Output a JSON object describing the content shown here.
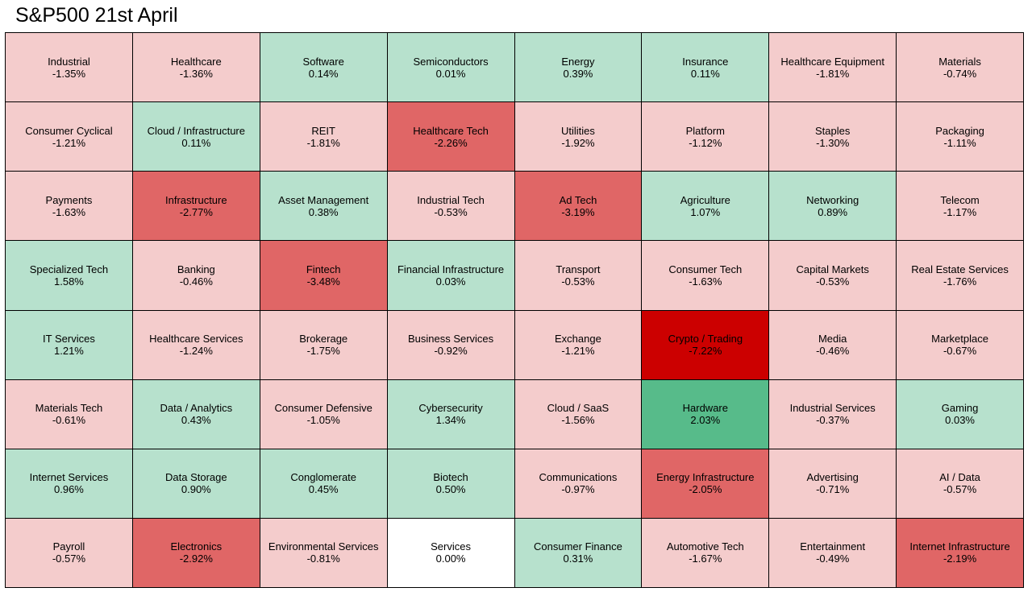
{
  "title": "S&P500 21st April",
  "colors": {
    "light_red": "#f4cccc",
    "medium_red": "#e06666",
    "dark_red": "#cc0000",
    "light_green": "#b7e1cd",
    "medium_green": "#57bb8a",
    "neutral": "#ffffff"
  },
  "chart_data": {
    "type": "heatmap",
    "title": "S&P500 21st April",
    "rows": 8,
    "columns": 8,
    "unit": "%",
    "cells": [
      {
        "sector": "Industrial",
        "change": -1.35,
        "label": "-1.35%"
      },
      {
        "sector": "Healthcare",
        "change": -1.36,
        "label": "-1.36%"
      },
      {
        "sector": "Software",
        "change": 0.14,
        "label": "0.14%"
      },
      {
        "sector": "Semiconductors",
        "change": 0.01,
        "label": "0.01%"
      },
      {
        "sector": "Energy",
        "change": 0.39,
        "label": "0.39%"
      },
      {
        "sector": "Insurance",
        "change": 0.11,
        "label": "0.11%"
      },
      {
        "sector": "Healthcare Equipment",
        "change": -1.81,
        "label": "-1.81%"
      },
      {
        "sector": "Materials",
        "change": -0.74,
        "label": "-0.74%"
      },
      {
        "sector": "Consumer Cyclical",
        "change": -1.21,
        "label": "-1.21%"
      },
      {
        "sector": "Cloud / Infrastructure",
        "change": 0.11,
        "label": "0.11%"
      },
      {
        "sector": "REIT",
        "change": -1.81,
        "label": "-1.81%"
      },
      {
        "sector": "Healthcare Tech",
        "change": -2.26,
        "label": "-2.26%"
      },
      {
        "sector": "Utilities",
        "change": -1.92,
        "label": "-1.92%"
      },
      {
        "sector": "Platform",
        "change": -1.12,
        "label": "-1.12%"
      },
      {
        "sector": "Staples",
        "change": -1.3,
        "label": "-1.30%"
      },
      {
        "sector": "Packaging",
        "change": -1.11,
        "label": "-1.11%"
      },
      {
        "sector": "Payments",
        "change": -1.63,
        "label": "-1.63%"
      },
      {
        "sector": "Infrastructure",
        "change": -2.77,
        "label": "-2.77%"
      },
      {
        "sector": "Asset Management",
        "change": 0.38,
        "label": "0.38%"
      },
      {
        "sector": "Industrial Tech",
        "change": -0.53,
        "label": "-0.53%"
      },
      {
        "sector": "Ad Tech",
        "change": -3.19,
        "label": "-3.19%"
      },
      {
        "sector": "Agriculture",
        "change": 1.07,
        "label": "1.07%"
      },
      {
        "sector": "Networking",
        "change": 0.89,
        "label": "0.89%"
      },
      {
        "sector": "Telecom",
        "change": -1.17,
        "label": "-1.17%"
      },
      {
        "sector": "Specialized Tech",
        "change": 1.58,
        "label": "1.58%"
      },
      {
        "sector": "Banking",
        "change": -0.46,
        "label": "-0.46%"
      },
      {
        "sector": "Fintech",
        "change": -3.48,
        "label": "-3.48%"
      },
      {
        "sector": "Financial Infrastructure",
        "change": 0.03,
        "label": "0.03%"
      },
      {
        "sector": "Transport",
        "change": -0.53,
        "label": "-0.53%"
      },
      {
        "sector": "Consumer Tech",
        "change": -1.63,
        "label": "-1.63%"
      },
      {
        "sector": "Capital Markets",
        "change": -0.53,
        "label": "-0.53%"
      },
      {
        "sector": "Real Estate Services",
        "change": -1.76,
        "label": "-1.76%"
      },
      {
        "sector": "IT Services",
        "change": 1.21,
        "label": "1.21%"
      },
      {
        "sector": "Healthcare Services",
        "change": -1.24,
        "label": "-1.24%"
      },
      {
        "sector": "Brokerage",
        "change": -1.75,
        "label": "-1.75%"
      },
      {
        "sector": "Business Services",
        "change": -0.92,
        "label": "-0.92%"
      },
      {
        "sector": "Exchange",
        "change": -1.21,
        "label": "-1.21%"
      },
      {
        "sector": "Crypto / Trading",
        "change": -7.22,
        "label": "-7.22%"
      },
      {
        "sector": "Media",
        "change": -0.46,
        "label": "-0.46%"
      },
      {
        "sector": "Marketplace",
        "change": -0.67,
        "label": "-0.67%"
      },
      {
        "sector": "Materials Tech",
        "change": -0.61,
        "label": "-0.61%"
      },
      {
        "sector": "Data / Analytics",
        "change": 0.43,
        "label": "0.43%"
      },
      {
        "sector": "Consumer Defensive",
        "change": -1.05,
        "label": "-1.05%"
      },
      {
        "sector": "Cybersecurity",
        "change": 1.34,
        "label": "1.34%"
      },
      {
        "sector": "Cloud / SaaS",
        "change": -1.56,
        "label": "-1.56%"
      },
      {
        "sector": "Hardware",
        "change": 2.03,
        "label": "2.03%"
      },
      {
        "sector": "Industrial Services",
        "change": -0.37,
        "label": "-0.37%"
      },
      {
        "sector": "Gaming",
        "change": 0.03,
        "label": "0.03%"
      },
      {
        "sector": "Internet Services",
        "change": 0.96,
        "label": "0.96%"
      },
      {
        "sector": "Data Storage",
        "change": 0.9,
        "label": "0.90%"
      },
      {
        "sector": "Conglomerate",
        "change": 0.45,
        "label": "0.45%"
      },
      {
        "sector": "Biotech",
        "change": 0.5,
        "label": "0.50%"
      },
      {
        "sector": "Communications",
        "change": -0.97,
        "label": "-0.97%"
      },
      {
        "sector": "Energy Infrastructure",
        "change": -2.05,
        "label": "-2.05%"
      },
      {
        "sector": "Advertising",
        "change": -0.71,
        "label": "-0.71%"
      },
      {
        "sector": "AI / Data",
        "change": -0.57,
        "label": "-0.57%"
      },
      {
        "sector": "Payroll",
        "change": -0.57,
        "label": "-0.57%"
      },
      {
        "sector": "Electronics",
        "change": -2.92,
        "label": "-2.92%"
      },
      {
        "sector": "Environmental Services",
        "change": -0.81,
        "label": "-0.81%"
      },
      {
        "sector": "Services",
        "change": 0.0,
        "label": "0.00%"
      },
      {
        "sector": "Consumer Finance",
        "change": 0.31,
        "label": "0.31%"
      },
      {
        "sector": "Automotive Tech",
        "change": -1.67,
        "label": "-1.67%"
      },
      {
        "sector": "Entertainment",
        "change": -0.49,
        "label": "-0.49%"
      },
      {
        "sector": "Internet Infrastructure",
        "change": -2.19,
        "label": "-2.19%"
      }
    ]
  }
}
